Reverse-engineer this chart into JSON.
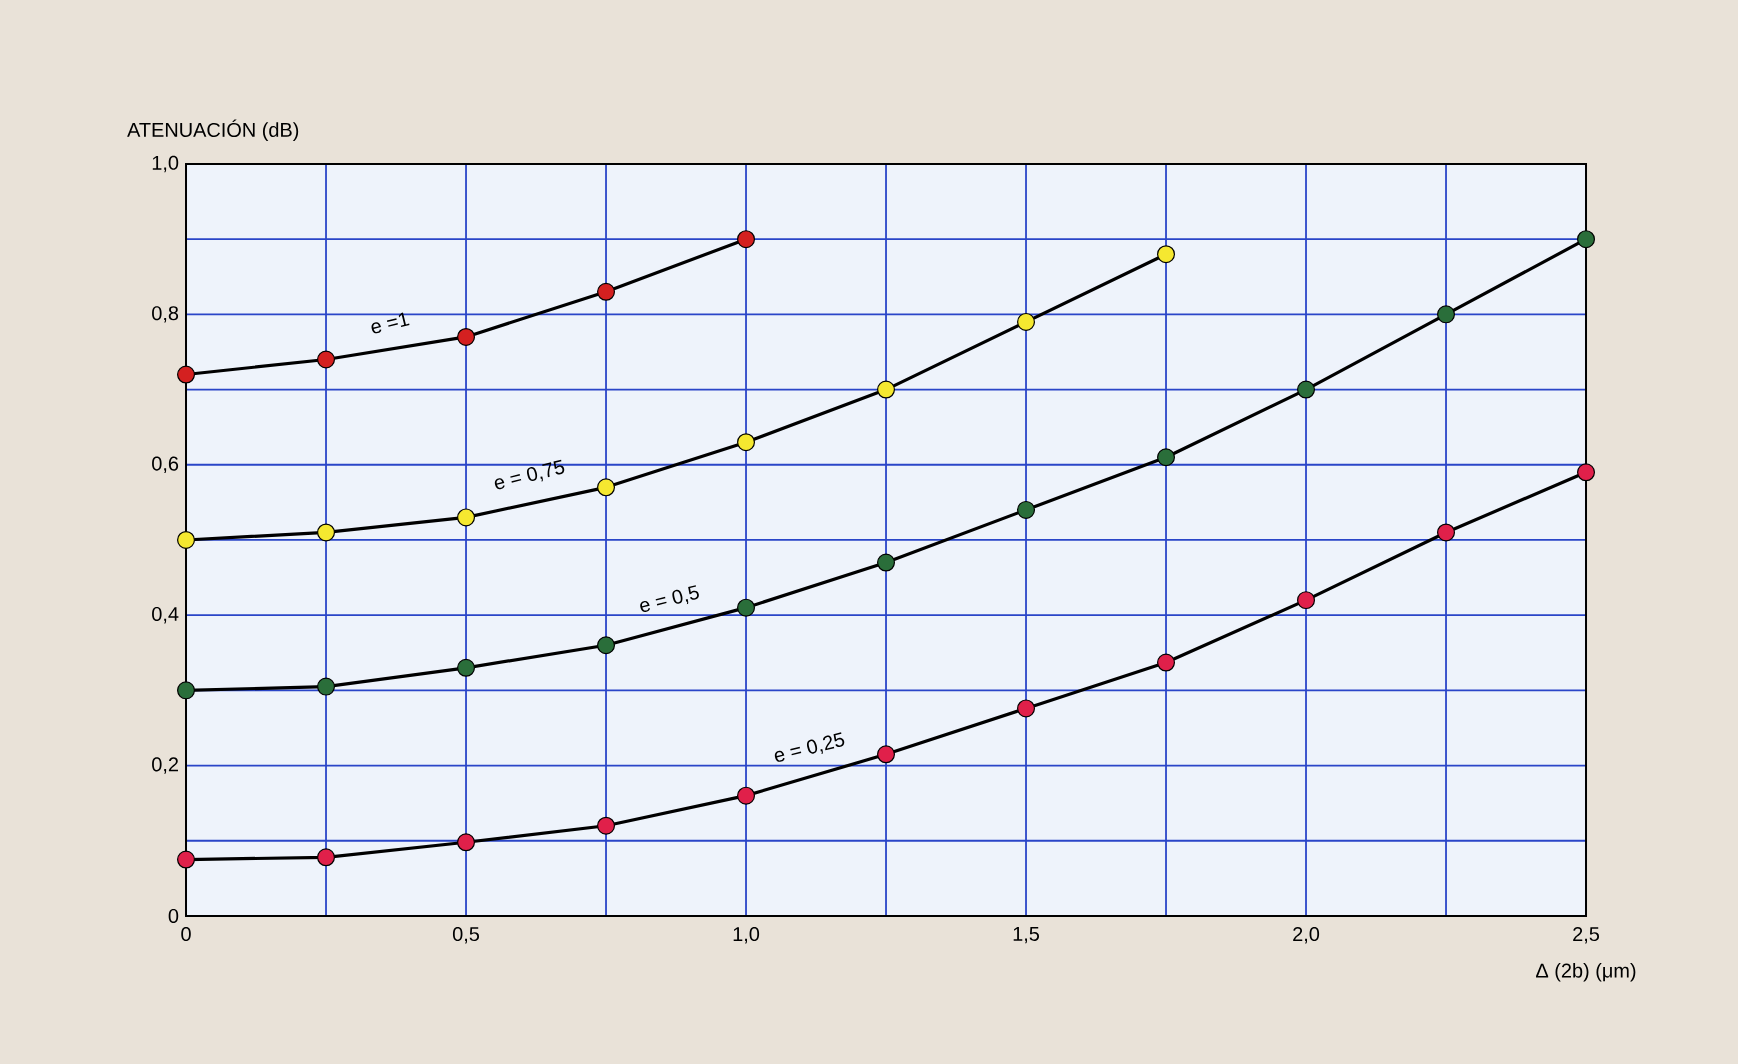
{
  "chart_data": {
    "type": "line",
    "xlabel": "Δ (2b) (μm)",
    "ylabel": "ATENUACIÓN (dB)",
    "x": [
      0,
      0.25,
      0.5,
      0.75,
      1.0,
      1.25,
      1.5,
      1.75,
      2.0,
      2.25,
      2.5
    ],
    "series": [
      {
        "name": "e =1",
        "color": "#d42020",
        "values": [
          0.72,
          0.74,
          0.77,
          0.83,
          0.9,
          null,
          null,
          null,
          null,
          null,
          null
        ]
      },
      {
        "name": "e = 0,75",
        "color": "#f5e830",
        "values": [
          0.5,
          0.51,
          0.53,
          0.57,
          0.63,
          0.7,
          0.79,
          0.88,
          null,
          null,
          null
        ]
      },
      {
        "name": "e = 0,5",
        "color": "#2a6e3a",
        "values": [
          0.3,
          0.305,
          0.33,
          0.36,
          0.41,
          0.47,
          0.54,
          0.61,
          0.7,
          0.8,
          0.9
        ]
      },
      {
        "name": "e = 0,25",
        "color": "#e0204a",
        "values": [
          0.075,
          0.078,
          0.098,
          0.12,
          0.16,
          0.215,
          0.276,
          0.337,
          0.42,
          0.51,
          0.59
        ]
      }
    ],
    "xlim": [
      0,
      2.5
    ],
    "ylim": [
      0,
      1.0
    ],
    "xticks": [
      0,
      {
        "value": 0.25,
        "label": null
      },
      {
        "value": 0.5,
        "label": "0,5"
      },
      {
        "value": 0.75,
        "label": null
      },
      {
        "value": 1.0,
        "label": "1,0"
      },
      {
        "value": 1.25,
        "label": null
      },
      {
        "value": 1.5,
        "label": "1,5"
      },
      {
        "value": 1.75,
        "label": null
      },
      {
        "value": 2.0,
        "label": "2,0"
      },
      {
        "value": 2.25,
        "label": null
      },
      {
        "value": 2.5,
        "label": "2,5"
      }
    ],
    "yticks": [
      0,
      {
        "value": 0.1,
        "label": null
      },
      {
        "value": 0.2,
        "label": "0,2"
      },
      {
        "value": 0.3,
        "label": null
      },
      {
        "value": 0.4,
        "label": "0,4"
      },
      {
        "value": 0.5,
        "label": null
      },
      {
        "value": 0.6,
        "label": "0,6"
      },
      {
        "value": 0.7,
        "label": null
      },
      {
        "value": 0.8,
        "label": "0,8"
      },
      {
        "value": 0.9,
        "label": null
      },
      {
        "value": 1.0,
        "label": "1,0"
      }
    ],
    "grid": true,
    "marker": "circle",
    "line_style": "solid"
  }
}
